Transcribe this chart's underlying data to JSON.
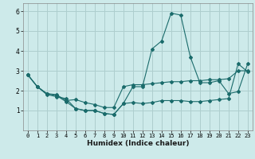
{
  "xlabel": "Humidex (Indice chaleur)",
  "ylabel": "",
  "bg_color": "#cdeaea",
  "grid_color": "#aecece",
  "line_color": "#1a6b6b",
  "xlim": [
    -0.5,
    23.5
  ],
  "ylim": [
    0,
    6.4
  ],
  "xticks": [
    0,
    1,
    2,
    3,
    4,
    5,
    6,
    7,
    8,
    9,
    10,
    11,
    12,
    13,
    14,
    15,
    16,
    17,
    18,
    19,
    20,
    21,
    22,
    23
  ],
  "yticks": [
    1,
    2,
    3,
    4,
    5,
    6
  ],
  "series1_x": [
    0,
    1,
    2,
    3,
    4,
    5,
    6,
    7,
    8,
    9,
    10,
    11,
    12,
    13,
    14,
    15,
    16,
    17,
    18,
    19,
    20,
    21,
    22,
    23
  ],
  "series1_y": [
    2.8,
    2.2,
    1.8,
    1.7,
    1.6,
    1.1,
    1.0,
    1.0,
    0.85,
    0.8,
    1.35,
    2.2,
    2.2,
    4.1,
    4.5,
    5.9,
    5.8,
    3.7,
    2.4,
    2.4,
    2.5,
    1.85,
    1.95,
    3.35
  ],
  "series2_x": [
    0,
    1,
    2,
    3,
    4,
    5,
    6,
    7,
    8,
    9,
    10,
    11,
    12,
    13,
    14,
    15,
    16,
    17,
    18,
    19,
    20,
    21,
    22,
    23
  ],
  "series2_y": [
    2.8,
    2.2,
    1.85,
    1.8,
    1.5,
    1.55,
    1.4,
    1.3,
    1.15,
    1.15,
    2.2,
    2.3,
    2.3,
    2.35,
    2.4,
    2.45,
    2.45,
    2.5,
    2.5,
    2.55,
    2.55,
    2.6,
    3.0,
    3.0
  ],
  "series3_x": [
    0,
    1,
    2,
    3,
    4,
    5,
    6,
    7,
    8,
    9,
    10,
    11,
    12,
    13,
    14,
    15,
    16,
    17,
    18,
    19,
    20,
    21,
    22,
    23
  ],
  "series3_y": [
    2.8,
    2.2,
    1.85,
    1.75,
    1.45,
    1.1,
    1.0,
    1.0,
    0.85,
    0.8,
    1.35,
    1.4,
    1.35,
    1.4,
    1.5,
    1.5,
    1.5,
    1.45,
    1.45,
    1.5,
    1.55,
    1.6,
    3.35,
    2.95
  ],
  "tick_fontsize": 5.0,
  "xlabel_fontsize": 6.5
}
